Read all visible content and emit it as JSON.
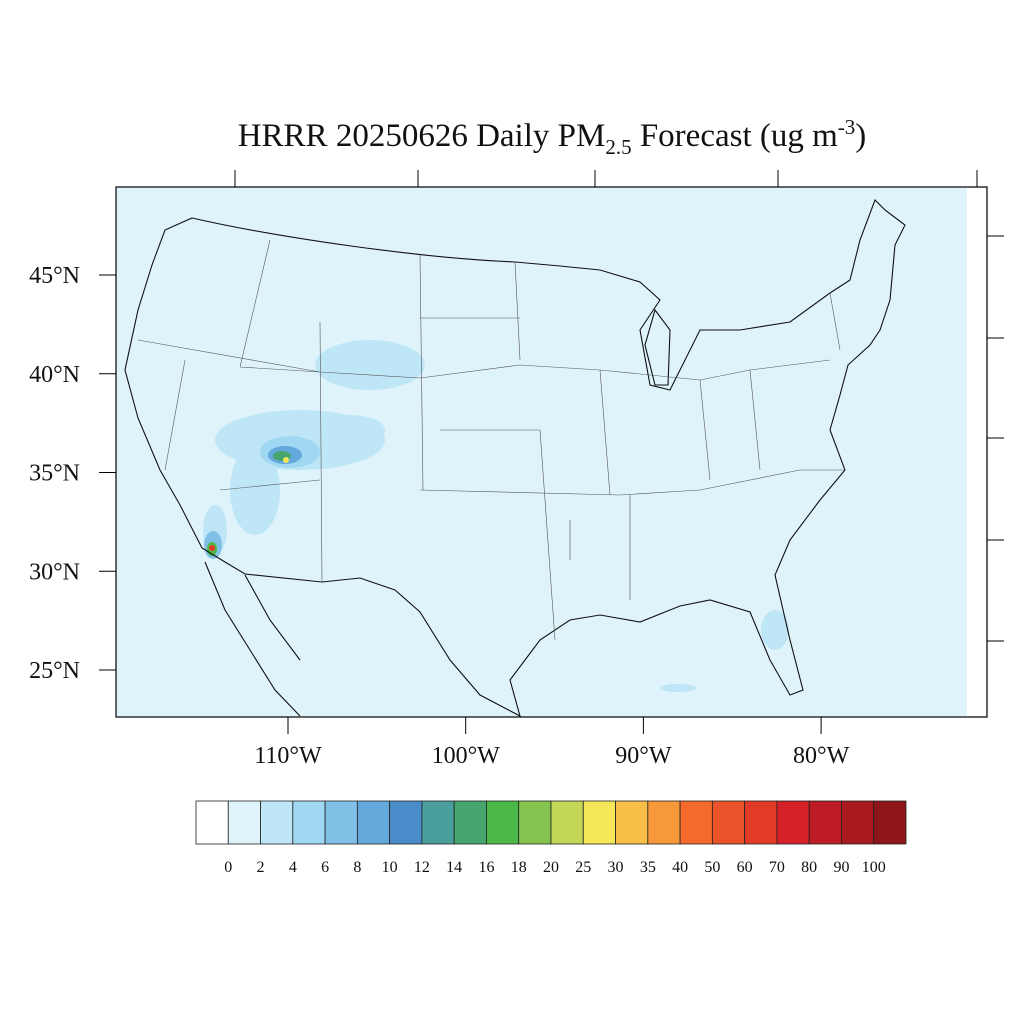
{
  "title": {
    "main": "HRRR 20250626 Daily PM",
    "subscript": "2.5",
    "middle": " Forecast (ug m",
    "superscript": "-3",
    "end": ")"
  },
  "latitude_ticks": [
    {
      "value": 45,
      "label": "45°N"
    },
    {
      "value": 40,
      "label": "40°N"
    },
    {
      "value": 35,
      "label": "35°N"
    },
    {
      "value": 30,
      "label": "30°N"
    },
    {
      "value": 25,
      "label": "25°N"
    }
  ],
  "longitude_ticks": [
    {
      "value": 110,
      "label": "110°W"
    },
    {
      "value": 100,
      "label": "100°W"
    },
    {
      "value": 90,
      "label": "90°W"
    },
    {
      "value": 80,
      "label": "80°W"
    }
  ],
  "colorbar": {
    "levels": [
      0,
      2,
      4,
      6,
      8,
      10,
      12,
      14,
      16,
      18,
      20,
      25,
      30,
      35,
      40,
      50,
      60,
      70,
      80,
      90,
      100
    ],
    "colors": [
      "#ffffff",
      "#dff3fb",
      "#bfe6f7",
      "#a0d8f3",
      "#80c0e6",
      "#64a9dc",
      "#4a8cc9",
      "#4a9e9b",
      "#47a66d",
      "#4cb848",
      "#85c44e",
      "#c3d655",
      "#f6e659",
      "#f8bf48",
      "#f7983a",
      "#f36a2c",
      "#ea5229",
      "#e13a26",
      "#d42028",
      "#bd1c24",
      "#a81a1e",
      "#8e1519"
    ]
  }
}
